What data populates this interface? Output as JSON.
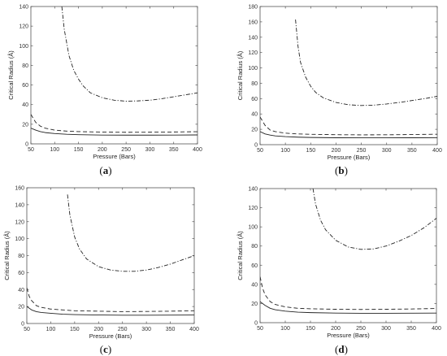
{
  "chart_data": [
    {
      "type": "line",
      "caption": "(a)",
      "caption_letter": "a",
      "xlabel": "Pressure (Bars)",
      "ylabel": "Critical Radius (Å)",
      "xlim": [
        50,
        400
      ],
      "ylim": [
        0,
        140
      ],
      "xticks": [
        50,
        100,
        150,
        200,
        250,
        300,
        350,
        400
      ],
      "yticks": [
        0,
        20,
        40,
        60,
        80,
        100,
        120,
        140
      ],
      "grid": false,
      "series": [
        {
          "style": "solid",
          "x": [
            50,
            60,
            70,
            80,
            100,
            125,
            150,
            200,
            250,
            300,
            350,
            400
          ],
          "y": [
            16,
            14,
            12.5,
            11.5,
            10.5,
            9.8,
            9.4,
            9,
            8.9,
            8.9,
            9,
            9.1
          ]
        },
        {
          "style": "dashed",
          "x": [
            50,
            60,
            70,
            80,
            100,
            125,
            150,
            200,
            250,
            300,
            350,
            400
          ],
          "y": [
            30,
            22,
            18,
            16,
            14,
            13,
            12.5,
            12,
            11.8,
            11.9,
            12.1,
            12.4
          ]
        },
        {
          "style": "dash-dot",
          "x": [
            115,
            120,
            130,
            140,
            150,
            160,
            175,
            200,
            225,
            250,
            275,
            300,
            325,
            350,
            375,
            400
          ],
          "y": [
            140,
            117,
            90,
            75,
            66,
            59,
            52,
            47,
            44.5,
            43.5,
            43.8,
            44.5,
            46,
            48,
            50,
            52
          ]
        }
      ]
    },
    {
      "type": "line",
      "caption": "(b)",
      "caption_letter": "b",
      "xlabel": "Pressure (Bars)",
      "ylabel": "Critical Radius (Å)",
      "xlim": [
        50,
        400
      ],
      "ylim": [
        0,
        180
      ],
      "xticks": [
        50,
        100,
        150,
        200,
        250,
        300,
        350,
        400
      ],
      "yticks": [
        0,
        20,
        40,
        60,
        80,
        100,
        120,
        140,
        160,
        180
      ],
      "grid": false,
      "series": [
        {
          "style": "solid",
          "x": [
            50,
            60,
            70,
            80,
            100,
            125,
            150,
            200,
            250,
            300,
            350,
            400
          ],
          "y": [
            17,
            14,
            12.5,
            11.5,
            10.5,
            9.8,
            9.4,
            9,
            8.9,
            8.9,
            9,
            9.1
          ]
        },
        {
          "style": "dashed",
          "x": [
            50,
            60,
            70,
            80,
            100,
            125,
            150,
            200,
            250,
            300,
            350,
            400
          ],
          "y": [
            36,
            25,
            19,
            17,
            15,
            14,
            13.5,
            13,
            12.8,
            12.9,
            13.2,
            13.6
          ]
        },
        {
          "style": "dash-dot",
          "x": [
            120,
            125,
            130,
            140,
            150,
            160,
            175,
            200,
            225,
            250,
            275,
            300,
            325,
            350,
            375,
            400
          ],
          "y": [
            163,
            128,
            107,
            88,
            76,
            68,
            61,
            55,
            52,
            51,
            51.5,
            53,
            55,
            57.5,
            60,
            63
          ]
        }
      ]
    },
    {
      "type": "line",
      "caption": "(c)",
      "caption_letter": "c",
      "xlabel": "Pressure (Bars)",
      "ylabel": "Critical Radius (Å)",
      "xlim": [
        50,
        400
      ],
      "ylim": [
        0,
        160
      ],
      "xticks": [
        50,
        100,
        150,
        200,
        250,
        300,
        350,
        400
      ],
      "yticks": [
        0,
        20,
        40,
        60,
        80,
        100,
        120,
        140,
        160
      ],
      "grid": false,
      "series": [
        {
          "style": "solid",
          "x": [
            50,
            60,
            70,
            80,
            100,
            125,
            150,
            200,
            250,
            300,
            350,
            400
          ],
          "y": [
            20,
            16,
            14,
            13,
            12,
            11,
            10.5,
            10,
            9.8,
            9.8,
            9.9,
            10
          ]
        },
        {
          "style": "dashed",
          "x": [
            50,
            55,
            60,
            70,
            80,
            100,
            125,
            150,
            200,
            250,
            300,
            350,
            400
          ],
          "y": [
            42,
            32,
            27,
            21,
            19,
            17,
            16,
            15,
            14.5,
            14,
            14.2,
            14.5,
            15
          ]
        },
        {
          "style": "dash-dot",
          "x": [
            135,
            140,
            150,
            160,
            175,
            200,
            225,
            250,
            275,
            300,
            325,
            350,
            375,
            400
          ],
          "y": [
            152,
            128,
            102,
            88,
            76,
            67,
            63,
            61.5,
            61.5,
            63,
            66,
            70,
            75,
            80
          ]
        }
      ]
    },
    {
      "type": "line",
      "caption": "(d)",
      "caption_letter": "d",
      "xlabel": "Pressure (Bars)",
      "ylabel": "Critical Radius (Å)",
      "xlim": [
        50,
        400
      ],
      "ylim": [
        0,
        140
      ],
      "xticks": [
        50,
        100,
        150,
        200,
        250,
        300,
        350,
        400
      ],
      "yticks": [
        0,
        20,
        40,
        60,
        80,
        100,
        120,
        140
      ],
      "grid": false,
      "series": [
        {
          "style": "solid",
          "x": [
            50,
            60,
            70,
            80,
            100,
            125,
            150,
            200,
            250,
            300,
            350,
            400
          ],
          "y": [
            22,
            18,
            15,
            13.5,
            12,
            11,
            10.5,
            10,
            9.8,
            9.8,
            9.9,
            10
          ]
        },
        {
          "style": "dashed",
          "x": [
            50,
            55,
            60,
            70,
            80,
            100,
            125,
            150,
            200,
            250,
            300,
            350,
            400
          ],
          "y": [
            48,
            36,
            29,
            22,
            19,
            16.5,
            15,
            14.5,
            14,
            13.8,
            14,
            14.3,
            14.8
          ]
        },
        {
          "style": "dash-dot",
          "x": [
            155,
            160,
            170,
            180,
            200,
            225,
            250,
            275,
            300,
            325,
            350,
            375,
            400
          ],
          "y": [
            140,
            124,
            107,
            97,
            86,
            79,
            76.5,
            77,
            80,
            85,
            91,
            99,
            109
          ]
        }
      ]
    }
  ]
}
